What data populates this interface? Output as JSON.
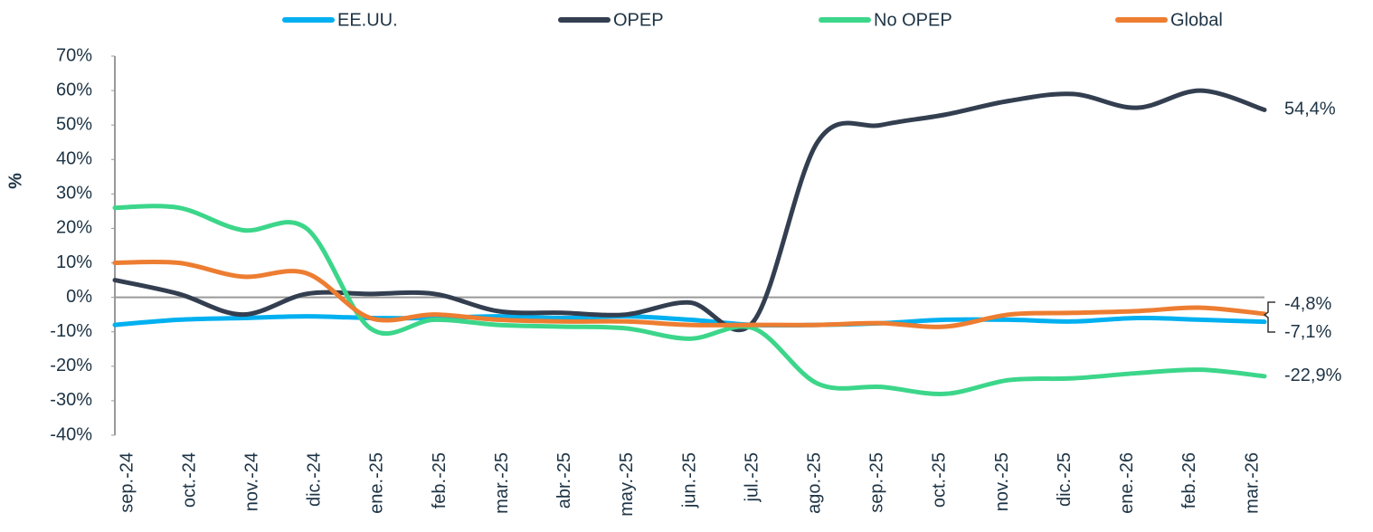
{
  "chart_data": {
    "type": "line",
    "y_label": "%",
    "categories": [
      "sep.-24",
      "oct.-24",
      "nov.-24",
      "dic.-24",
      "ene.-25",
      "feb.-25",
      "mar.-25",
      "abr.-25",
      "may.-25",
      "jun.-25",
      "jul.-25",
      "ago.-25",
      "sep.-25",
      "oct.-25",
      "nov.-25",
      "dic.-25",
      "ene.-26",
      "feb.-26",
      "mar.-26"
    ],
    "series": [
      {
        "name": "EE.UU.",
        "color": "#00b0f0",
        "values": [
          -8,
          -6.5,
          -6,
          -5.5,
          -6,
          -6,
          -5.5,
          -6,
          -5.5,
          -6.5,
          -8,
          -8,
          -7.5,
          -6.5,
          -6.5,
          -7,
          -6,
          -6.5,
          -7.1
        ],
        "value_labels": [
          null,
          null,
          null,
          null,
          null,
          null,
          null,
          null,
          null,
          null,
          null,
          null,
          null,
          null,
          null,
          null,
          null,
          null,
          "-7,1%"
        ]
      },
      {
        "name": "OPEP",
        "color": "#333f50",
        "values": [
          5,
          1,
          -5,
          1,
          1,
          1,
          -4,
          -4.5,
          -5,
          -1.5,
          -7,
          45,
          50,
          53,
          57,
          59,
          55,
          60,
          54.4
        ],
        "value_labels": [
          null,
          null,
          null,
          null,
          null,
          null,
          null,
          null,
          null,
          null,
          null,
          null,
          null,
          null,
          null,
          null,
          null,
          null,
          "54,4%"
        ]
      },
      {
        "name": "No OPEP",
        "color": "#3cd68a",
        "values": [
          26,
          26,
          19.5,
          20,
          -9,
          -6.5,
          -8,
          -8.5,
          -9,
          -12,
          -9,
          -25,
          -26,
          -28,
          -24,
          -23.5,
          -22,
          -21,
          -22.9
        ],
        "value_labels": [
          null,
          null,
          null,
          null,
          null,
          null,
          null,
          null,
          null,
          null,
          null,
          null,
          null,
          null,
          null,
          null,
          null,
          null,
          "-22,9%"
        ]
      },
      {
        "name": "Global",
        "color": "#ed7d31",
        "values": [
          10,
          10,
          6,
          7,
          -6,
          -5,
          -6.5,
          -7,
          -7,
          -8,
          -8,
          -8,
          -7.5,
          -8.5,
          -5,
          -4.5,
          -4,
          -3,
          -4.8
        ],
        "value_labels": [
          null,
          null,
          null,
          null,
          null,
          null,
          null,
          null,
          null,
          null,
          null,
          null,
          null,
          null,
          null,
          null,
          null,
          null,
          "-4,8%"
        ]
      }
    ],
    "ylim": [
      -40,
      70
    ],
    "yticks": [
      {
        "value": -40,
        "label": "-40%"
      },
      {
        "value": -30,
        "label": "-30%"
      },
      {
        "value": -20,
        "label": "-20%"
      },
      {
        "value": -10,
        "label": "-10%"
      },
      {
        "value": 0,
        "label": "0%"
      },
      {
        "value": 10,
        "label": "10%"
      },
      {
        "value": 20,
        "label": "20%"
      },
      {
        "value": 30,
        "label": "30%"
      },
      {
        "value": 40,
        "label": "40%"
      },
      {
        "value": 50,
        "label": "50%"
      },
      {
        "value": 60,
        "label": "60%"
      },
      {
        "value": 70,
        "label": "70%"
      }
    ],
    "legend": "top",
    "grid": false
  }
}
